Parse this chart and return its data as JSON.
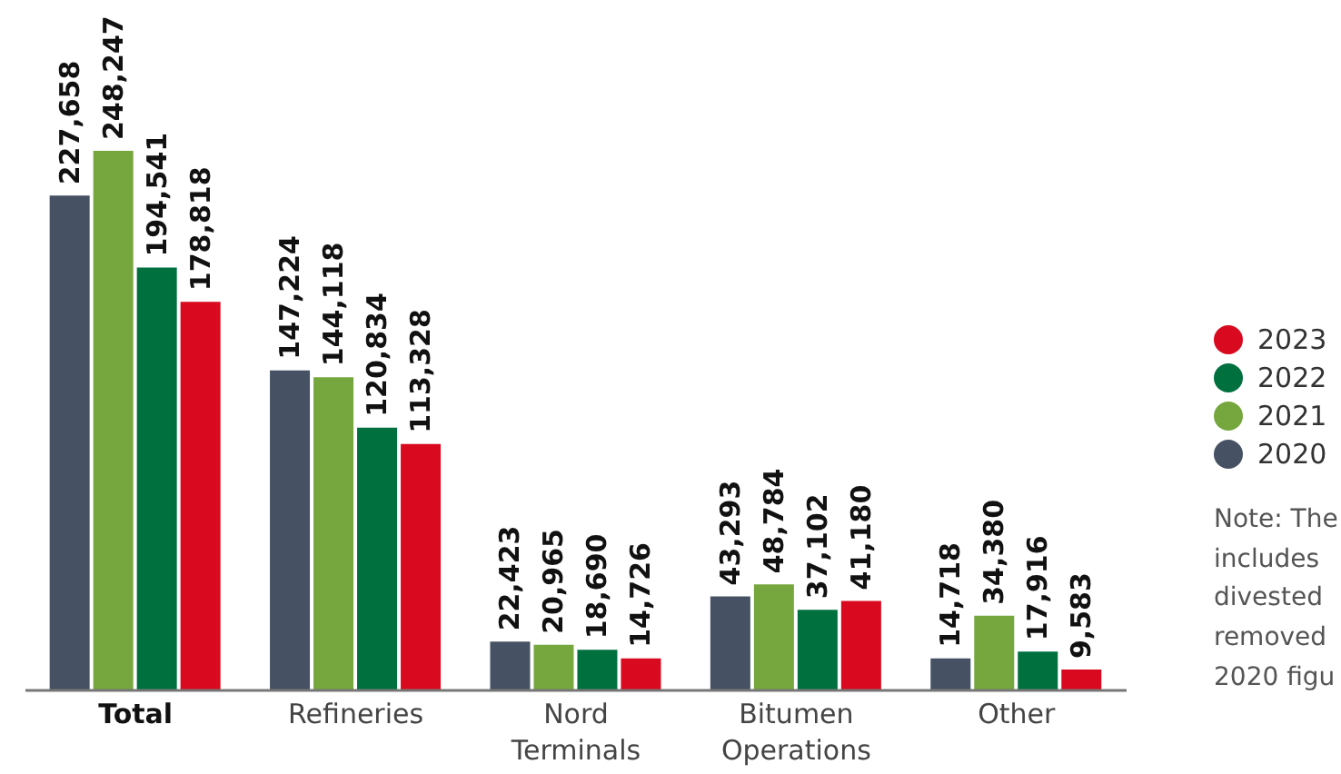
{
  "chart_data": {
    "type": "bar",
    "categories": [
      "Total",
      "Refineries",
      "Nord Terminals",
      "Bitumen Operations",
      "Other"
    ],
    "series": [
      {
        "name": "2020",
        "color": "#465263",
        "values": [
          227658,
          147224,
          22423,
          43293,
          14718
        ],
        "value_labels": [
          "227,658",
          "147,224",
          "22,423",
          "43,293",
          "14,718"
        ]
      },
      {
        "name": "2021",
        "color": "#76a73e",
        "values": [
          248247,
          144118,
          20965,
          48784,
          34380
        ],
        "value_labels": [
          "248,247",
          "144,118",
          "20,965",
          "48,784",
          "34,380"
        ]
      },
      {
        "name": "2022",
        "color": "#00703f",
        "values": [
          194541,
          120834,
          18690,
          37102,
          17916
        ],
        "value_labels": [
          "194,541",
          "120,834",
          "18,690",
          "37,102",
          "17,916"
        ]
      },
      {
        "name": "2023",
        "color": "#d90a1f",
        "values": [
          178818,
          113328,
          14726,
          41180,
          9583
        ],
        "value_labels": [
          "178,818",
          "113,328",
          "14,726",
          "41,180",
          "9,583"
        ]
      }
    ],
    "legend": "right",
    "tick_labels": "x",
    "annotations": [
      "Note: The\nincludes\ndivested\nremoved\n2020 figu"
    ]
  }
}
